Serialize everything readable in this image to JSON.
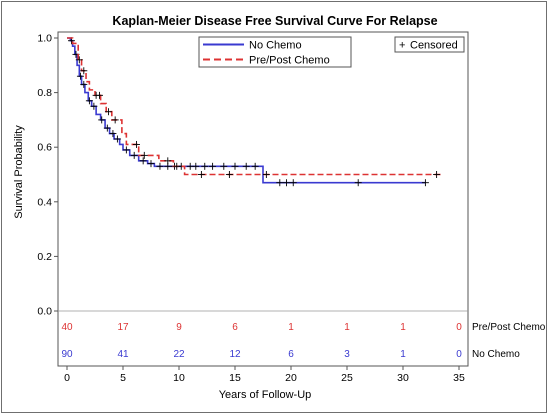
{
  "chart_data": {
    "type": "line",
    "title": "Kaplan-Meier Disease Free Survival Curve For Relapse",
    "xlabel": "Years of Follow-Up",
    "ylabel": "Survival Probability",
    "xlim": [
      0,
      35
    ],
    "ylim": [
      0,
      1.0
    ],
    "x_ticks": [
      "0",
      "5",
      "10",
      "15",
      "20",
      "25",
      "30",
      "35"
    ],
    "y_ticks": [
      "0.0",
      "0.2",
      "0.4",
      "0.6",
      "0.8",
      "1.0"
    ],
    "censored_label": "Censored",
    "series": [
      {
        "name": "No Chemo",
        "color": "#3a3ad0",
        "dash": "solid",
        "steps": [
          [
            0,
            1.0
          ],
          [
            0.3,
            0.99
          ],
          [
            0.5,
            0.97
          ],
          [
            0.7,
            0.94
          ],
          [
            0.9,
            0.9
          ],
          [
            1.1,
            0.86
          ],
          [
            1.3,
            0.83
          ],
          [
            1.6,
            0.8
          ],
          [
            1.9,
            0.77
          ],
          [
            2.2,
            0.75
          ],
          [
            2.6,
            0.72
          ],
          [
            3.0,
            0.7
          ],
          [
            3.4,
            0.67
          ],
          [
            3.8,
            0.65
          ],
          [
            4.2,
            0.63
          ],
          [
            4.7,
            0.61
          ],
          [
            5.0,
            0.59
          ],
          [
            5.6,
            0.57
          ],
          [
            6.4,
            0.55
          ],
          [
            7.2,
            0.54
          ],
          [
            7.8,
            0.53
          ],
          [
            17.5,
            0.47
          ],
          [
            32.0,
            0.47
          ]
        ],
        "censored_x": [
          0.4,
          0.8,
          1.2,
          1.5,
          2.0,
          2.4,
          3.1,
          3.6,
          4.1,
          4.5,
          5.3,
          6.0,
          6.8,
          7.5,
          8.3,
          9.0,
          9.6,
          10.2,
          11.0,
          11.5,
          12.3,
          13.0,
          14.0,
          15.0,
          16.0,
          16.8,
          19.0,
          19.6,
          20.2,
          26.0,
          32.0
        ]
      },
      {
        "name": "Pre/Post Chemo",
        "color": "#dd3333",
        "dash": "dashed",
        "steps": [
          [
            0,
            1.0
          ],
          [
            0.5,
            0.98
          ],
          [
            1.0,
            0.92
          ],
          [
            1.3,
            0.88
          ],
          [
            1.7,
            0.84
          ],
          [
            2.0,
            0.81
          ],
          [
            2.5,
            0.79
          ],
          [
            3.0,
            0.76
          ],
          [
            3.5,
            0.73
          ],
          [
            4.0,
            0.7
          ],
          [
            4.9,
            0.65
          ],
          [
            5.3,
            0.61
          ],
          [
            6.4,
            0.57
          ],
          [
            8.2,
            0.55
          ],
          [
            9.5,
            0.53
          ],
          [
            10.5,
            0.5
          ],
          [
            33.5,
            0.5
          ]
        ],
        "censored_x": [
          1.1,
          1.5,
          2.6,
          2.9,
          3.7,
          4.3,
          6.2,
          6.9,
          9.0,
          9.8,
          12.0,
          14.5,
          17.8,
          33.0
        ]
      }
    ],
    "at_risk": {
      "x": [
        0,
        5,
        10,
        15,
        20,
        25,
        30,
        35
      ],
      "rows": [
        {
          "label": "Pre/Post Chemo",
          "color": "#dd3333",
          "values": [
            "40",
            "17",
            "9",
            "6",
            "1",
            "1",
            "1",
            "0"
          ]
        },
        {
          "label": "No Chemo",
          "color": "#3a3ad0",
          "values": [
            "90",
            "41",
            "22",
            "12",
            "6",
            "3",
            "1",
            "0"
          ]
        }
      ]
    }
  }
}
